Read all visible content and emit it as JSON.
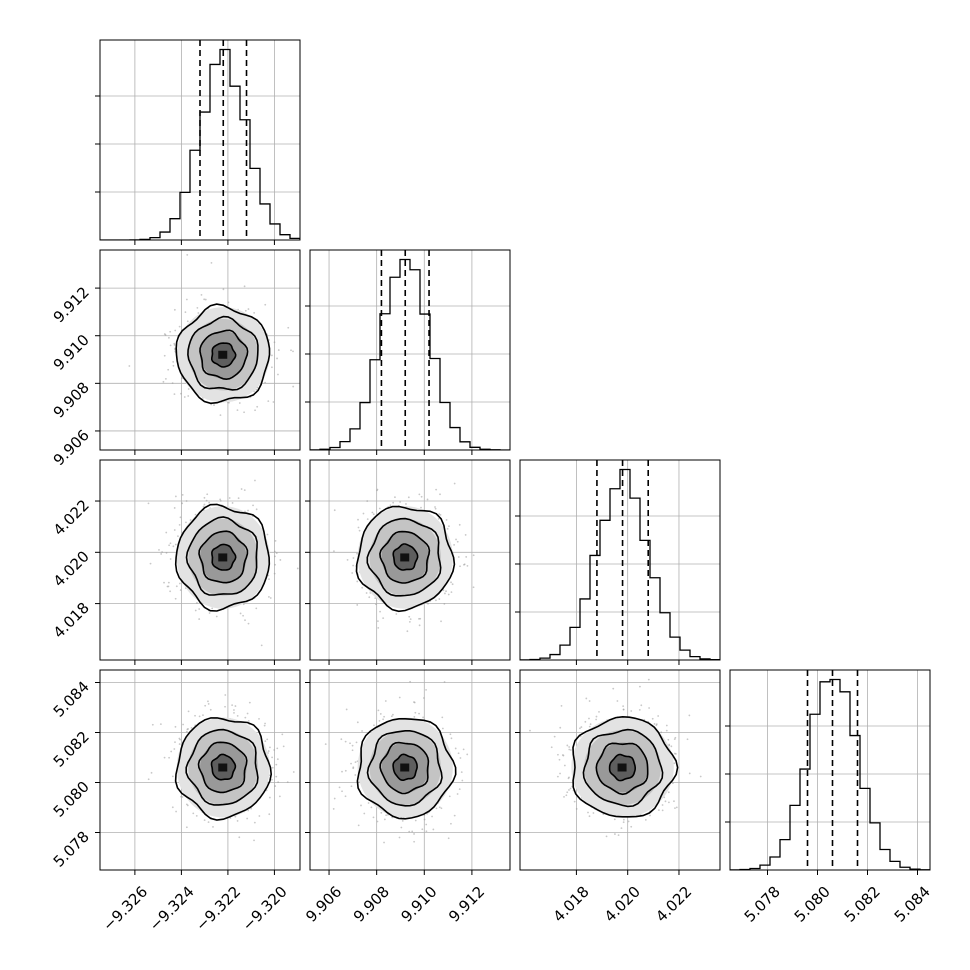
{
  "chart_data": {
    "type": "corner",
    "title": "",
    "grid": true,
    "parameters": [
      {
        "ticks": [
          "−9.326",
          "−9.324",
          "−9.322",
          "−9.320"
        ],
        "tick_values": [
          -9.326,
          -9.324,
          -9.322,
          -9.32
        ],
        "range": [
          -9.3275,
          -9.3189
        ],
        "quantiles": [
          -9.3232,
          -9.3222,
          -9.3212
        ],
        "mean": -9.3222,
        "sd": 0.001
      },
      {
        "ticks": [
          "9.906",
          "9.908",
          "9.910",
          "9.912"
        ],
        "tick_values": [
          9.906,
          9.908,
          9.91,
          9.912
        ],
        "range": [
          9.9052,
          9.9136
        ],
        "quantiles": [
          9.9082,
          9.9092,
          9.9102
        ],
        "mean": 9.9092,
        "sd": 0.001
      },
      {
        "ticks": [
          "4.018",
          "4.020",
          "4.022"
        ],
        "tick_values": [
          4.018,
          4.02,
          4.022
        ],
        "range": [
          4.0158,
          4.0236
        ],
        "quantiles": [
          4.0188,
          4.0198,
          4.0208
        ],
        "mean": 4.0198,
        "sd": 0.001
      },
      {
        "ticks": [
          "5.078",
          "5.080",
          "5.082",
          "5.084"
        ],
        "tick_values": [
          5.078,
          5.08,
          5.082,
          5.084
        ],
        "range": [
          5.0765,
          5.0845
        ],
        "quantiles": [
          5.0796,
          5.0806,
          5.0816
        ],
        "mean": 5.0806,
        "sd": 0.001
      }
    ],
    "histogram_bins": 20,
    "contour_levels_sigma": [
      0.5,
      1.0,
      1.5,
      2.0
    ],
    "colors": {
      "line": "#000000",
      "scatter": "#9a9a9a",
      "grid": "#b0b0b0"
    }
  }
}
